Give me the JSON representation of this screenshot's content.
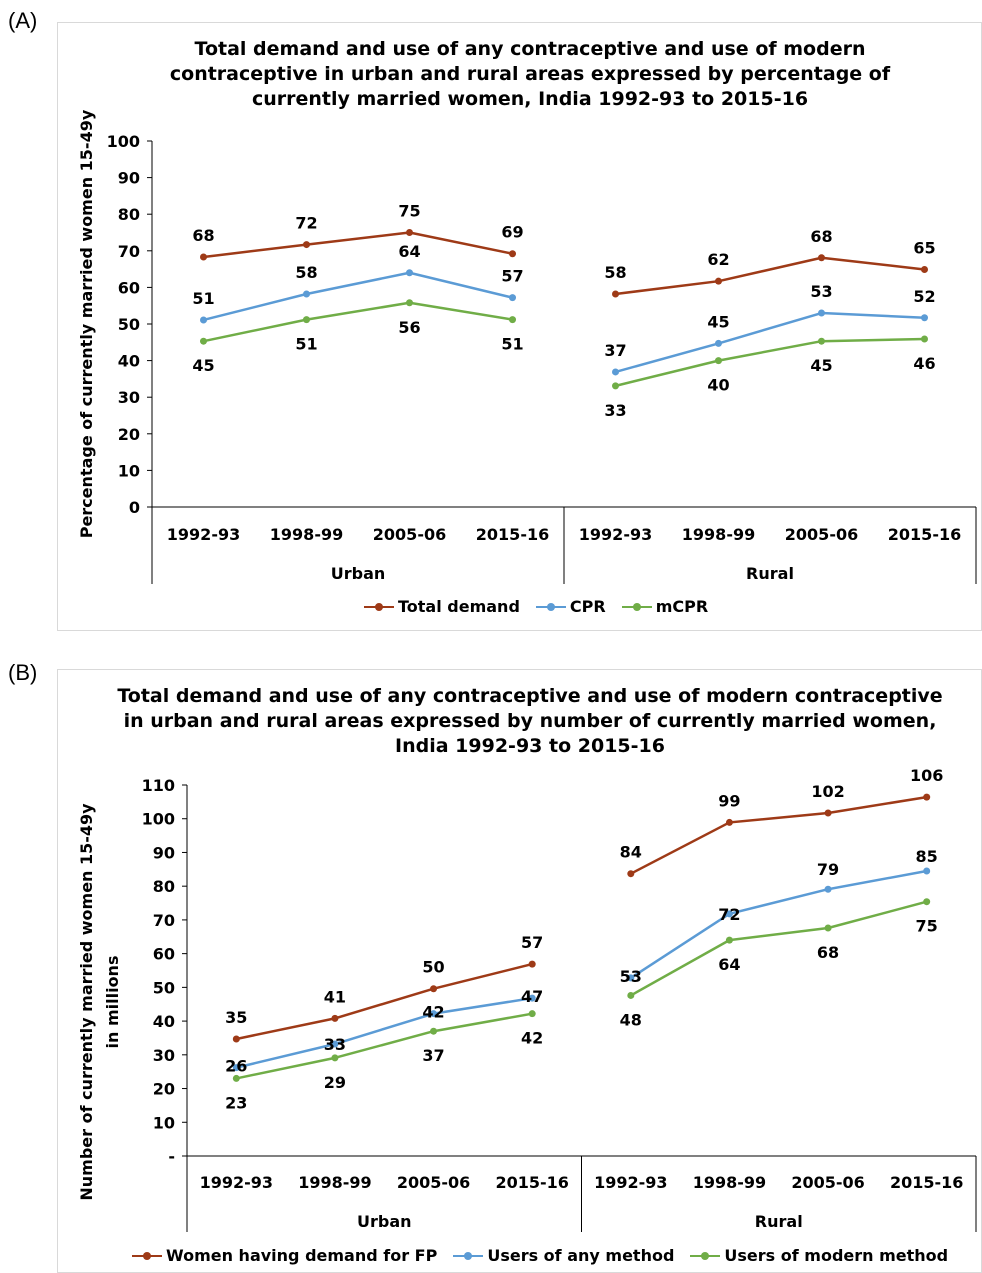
{
  "panels": [
    {
      "label": "(A)",
      "chart_data": {
        "type": "line",
        "title": "Total demand and use of any contraceptive and use of modern contraceptive in urban and rural areas expressed by percentage of currently married women, India 1992-93 to 2015-16",
        "title_lines": [
          "Total demand and use of any contraceptive and use of modern",
          "contraceptive in urban and rural areas expressed by percentage of",
          "currently married women, India 1992-93 to 2015-16"
        ],
        "ylabel": "Percentage of currently married women 15-49y",
        "ylabel_lines": [
          "Percentage of currently married women 15-49y"
        ],
        "ylim": [
          0,
          100
        ],
        "yticks": [
          "0",
          "10",
          "20",
          "30",
          "40",
          "50",
          "60",
          "70",
          "80",
          "90",
          "100"
        ],
        "groups": [
          {
            "name": "Urban",
            "categories": [
              "1992-93",
              "1998-99",
              "2005-06",
              "2015-16"
            ]
          },
          {
            "name": "Rural",
            "categories": [
              "1992-93",
              "1998-99",
              "2005-06",
              "2015-16"
            ]
          }
        ],
        "series": [
          {
            "name": "Total demand",
            "color": "#9e3a17",
            "values": [
              [
                68.3,
                71.7,
                75.0,
                69.2
              ],
              [
                58.2,
                61.7,
                68.1,
                64.9
              ]
            ],
            "labels": [
              [
                "68",
                "72",
                "75",
                "69"
              ],
              [
                "58",
                "62",
                "68",
                "65"
              ]
            ]
          },
          {
            "name": "CPR",
            "color": "#5b9bd5",
            "values": [
              [
                51.1,
                58.2,
                64.0,
                57.2
              ],
              [
                36.9,
                44.7,
                53.0,
                51.7
              ]
            ],
            "labels": [
              [
                "51",
                "58",
                "64",
                "57"
              ],
              [
                "37",
                "45",
                "53",
                "52"
              ]
            ]
          },
          {
            "name": "mCPR",
            "color": "#70ad47",
            "values": [
              [
                45.3,
                51.2,
                55.8,
                51.2
              ],
              [
                33.1,
                40.0,
                45.3,
                45.9
              ]
            ],
            "labels": [
              [
                "45",
                "51",
                "56",
                "51"
              ],
              [
                "33",
                "40",
                "45",
                "46"
              ]
            ]
          }
        ],
        "legend_position": "bottom"
      }
    },
    {
      "label": "(B)",
      "chart_data": {
        "type": "line",
        "title": "Total demand and use of any contraceptive and use of modern contraceptive in urban and rural areas expressed by number of currently married women, India 1992-93 to 2015-16",
        "title_lines": [
          "Total demand and use of any contraceptive and use of modern contraceptive",
          "in urban and rural areas expressed by number of currently married women,",
          "India 1992-93 to 2015-16"
        ],
        "ylabel": "Number of currently married women 15-49y in millions",
        "ylabel_lines": [
          "Number of currently married women 15-49y",
          "in millions"
        ],
        "ylim": [
          0,
          110
        ],
        "yticks": [
          "-",
          "10",
          "20",
          "30",
          "40",
          "50",
          "60",
          "70",
          "80",
          "90",
          "100",
          "110"
        ],
        "groups": [
          {
            "name": "Urban",
            "categories": [
              "1992-93",
              "1998-99",
              "2005-06",
              "2015-16"
            ]
          },
          {
            "name": "Rural",
            "categories": [
              "1992-93",
              "1998-99",
              "2005-06",
              "2015-16"
            ]
          }
        ],
        "series": [
          {
            "name": "Women having demand for FP",
            "color": "#9e3a17",
            "values": [
              [
                34.7,
                40.8,
                49.6,
                56.9
              ],
              [
                83.7,
                98.9,
                101.7,
                106.4
              ]
            ],
            "labels": [
              [
                "35",
                "41",
                "50",
                "57"
              ],
              [
                "84",
                "99",
                "102",
                "106"
              ]
            ]
          },
          {
            "name": "Users of any method",
            "color": "#5b9bd5",
            "values": [
              [
                26.2,
                33.2,
                42.2,
                46.8
              ],
              [
                52.8,
                71.8,
                79.1,
                84.5
              ]
            ],
            "labels": [
              [
                "26",
                "33",
                "42",
                "47"
              ],
              [
                "53",
                "72",
                "79",
                "85"
              ]
            ]
          },
          {
            "name": "Users of modern method",
            "color": "#70ad47",
            "values": [
              [
                23.0,
                29.1,
                37.0,
                42.2
              ],
              [
                47.6,
                64.0,
                67.6,
                75.4
              ]
            ],
            "labels": [
              [
                "23",
                "29",
                "37",
                "42"
              ],
              [
                "48",
                "64",
                "68",
                "75"
              ]
            ]
          }
        ],
        "legend_position": "bottom"
      }
    }
  ]
}
